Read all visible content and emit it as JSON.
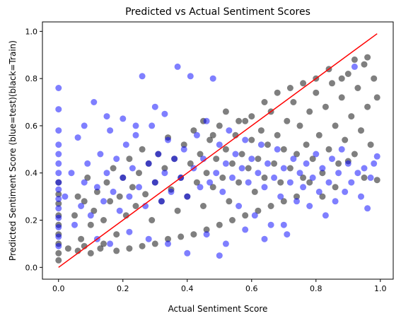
{
  "chart_data": {
    "type": "scatter",
    "title": "Predicted vs Actual Sentiment Scores",
    "xlabel": "Actual Sentiment Score",
    "ylabel": "Predicted Sentiment Score (blue=test)(black=Train)",
    "xlim": [
      -0.05,
      1.04
    ],
    "ylim": [
      -0.05,
      1.04
    ],
    "xticks": [
      0.0,
      0.2,
      0.4,
      0.6,
      0.8,
      1.0
    ],
    "yticks": [
      0.0,
      0.2,
      0.4,
      0.6,
      0.8,
      1.0
    ],
    "tick_labels": [
      "0.0",
      "0.2",
      "0.4",
      "0.6",
      "0.8",
      "1.0"
    ],
    "grid": false,
    "legend": "none",
    "series": [
      {
        "color": "#000000",
        "alpha": 0.5,
        "values": [
          [
            0.0,
            0.03
          ],
          [
            0.0,
            0.06
          ],
          [
            0.0,
            0.1
          ],
          [
            0.0,
            0.14
          ],
          [
            0.0,
            0.18
          ],
          [
            0.0,
            0.22
          ],
          [
            0.0,
            0.27
          ],
          [
            0.0,
            0.31
          ],
          [
            0.0,
            0.36
          ],
          [
            0.03,
            0.08
          ],
          [
            0.05,
            0.22
          ],
          [
            0.06,
            0.3
          ],
          [
            0.07,
            0.12
          ],
          [
            0.08,
            0.28
          ],
          [
            0.09,
            0.38
          ],
          [
            0.1,
            0.18
          ],
          [
            0.11,
            0.24
          ],
          [
            0.12,
            0.32
          ],
          [
            0.13,
            0.08
          ],
          [
            0.14,
            0.2
          ],
          [
            0.15,
            0.36
          ],
          [
            0.16,
            0.28
          ],
          [
            0.17,
            0.42
          ],
          [
            0.18,
            0.14
          ],
          [
            0.19,
            0.3
          ],
          [
            0.2,
            0.38
          ],
          [
            0.21,
            0.22
          ],
          [
            0.22,
            0.46
          ],
          [
            0.23,
            0.34
          ],
          [
            0.24,
            0.26
          ],
          [
            0.25,
            0.4
          ],
          [
            0.26,
            0.5
          ],
          [
            0.27,
            0.31
          ],
          [
            0.28,
            0.44
          ],
          [
            0.29,
            0.2
          ],
          [
            0.3,
            0.36
          ],
          [
            0.31,
            0.48
          ],
          [
            0.32,
            0.28
          ],
          [
            0.33,
            0.42
          ],
          [
            0.34,
            0.55
          ],
          [
            0.35,
            0.33
          ],
          [
            0.36,
            0.46
          ],
          [
            0.37,
            0.24
          ],
          [
            0.38,
            0.38
          ],
          [
            0.39,
            0.52
          ],
          [
            0.4,
            0.3
          ],
          [
            0.41,
            0.44
          ],
          [
            0.42,
            0.58
          ],
          [
            0.43,
            0.36
          ],
          [
            0.44,
            0.48
          ],
          [
            0.45,
            0.26
          ],
          [
            0.46,
            0.4
          ],
          [
            0.47,
            0.54
          ],
          [
            0.48,
            0.34
          ],
          [
            0.49,
            0.46
          ],
          [
            0.5,
            0.6
          ],
          [
            0.51,
            0.38
          ],
          [
            0.52,
            0.5
          ],
          [
            0.53,
            0.28
          ],
          [
            0.54,
            0.44
          ],
          [
            0.55,
            0.56
          ],
          [
            0.56,
            0.36
          ],
          [
            0.57,
            0.48
          ],
          [
            0.58,
            0.62
          ],
          [
            0.59,
            0.42
          ],
          [
            0.6,
            0.54
          ],
          [
            0.61,
            0.32
          ],
          [
            0.62,
            0.46
          ],
          [
            0.63,
            0.58
          ],
          [
            0.64,
            0.38
          ],
          [
            0.65,
            0.52
          ],
          [
            0.66,
            0.66
          ],
          [
            0.67,
            0.44
          ],
          [
            0.68,
            0.56
          ],
          [
            0.69,
            0.36
          ],
          [
            0.7,
            0.5
          ],
          [
            0.71,
            0.62
          ],
          [
            0.72,
            0.42
          ],
          [
            0.73,
            0.7
          ],
          [
            0.74,
            0.48
          ],
          [
            0.75,
            0.6
          ],
          [
            0.76,
            0.38
          ],
          [
            0.77,
            0.52
          ],
          [
            0.78,
            0.66
          ],
          [
            0.79,
            0.46
          ],
          [
            0.8,
            0.74
          ],
          [
            0.81,
            0.56
          ],
          [
            0.82,
            0.4
          ],
          [
            0.83,
            0.68
          ],
          [
            0.84,
            0.5
          ],
          [
            0.85,
            0.78
          ],
          [
            0.86,
            0.6
          ],
          [
            0.87,
            0.44
          ],
          [
            0.88,
            0.72
          ],
          [
            0.89,
            0.54
          ],
          [
            0.9,
            0.82
          ],
          [
            0.91,
            0.64
          ],
          [
            0.92,
            0.48
          ],
          [
            0.93,
            0.76
          ],
          [
            0.94,
            0.58
          ],
          [
            0.95,
            0.86
          ],
          [
            0.96,
            0.68
          ],
          [
            0.97,
            0.52
          ],
          [
            0.98,
            0.8
          ],
          [
            0.99,
            0.72
          ],
          [
            0.99,
            0.37
          ],
          [
            0.95,
            0.38
          ],
          [
            0.9,
            0.45
          ],
          [
            0.86,
            0.34
          ],
          [
            0.82,
            0.3
          ],
          [
            0.78,
            0.36
          ],
          [
            0.74,
            0.3
          ],
          [
            0.7,
            0.28
          ],
          [
            0.66,
            0.26
          ],
          [
            0.62,
            0.24
          ],
          [
            0.58,
            0.22
          ],
          [
            0.54,
            0.2
          ],
          [
            0.5,
            0.18
          ],
          [
            0.46,
            0.16
          ],
          [
            0.42,
            0.14
          ],
          [
            0.38,
            0.13
          ],
          [
            0.34,
            0.12
          ],
          [
            0.3,
            0.1
          ],
          [
            0.26,
            0.09
          ],
          [
            0.22,
            0.08
          ],
          [
            0.18,
            0.07
          ],
          [
            0.14,
            0.1
          ],
          [
            0.1,
            0.06
          ],
          [
            0.08,
            0.09
          ],
          [
            0.06,
            0.07
          ],
          [
            0.45,
            0.62
          ],
          [
            0.52,
            0.66
          ],
          [
            0.6,
            0.64
          ],
          [
            0.68,
            0.74
          ],
          [
            0.76,
            0.78
          ],
          [
            0.84,
            0.84
          ],
          [
            0.92,
            0.88
          ],
          [
            0.96,
            0.89
          ],
          [
            0.88,
            0.8
          ],
          [
            0.8,
            0.8
          ],
          [
            0.72,
            0.76
          ],
          [
            0.64,
            0.7
          ],
          [
            0.56,
            0.62
          ],
          [
            0.48,
            0.56
          ]
        ]
      },
      {
        "color": "#0000ff",
        "alpha": 0.5,
        "values": [
          [
            0.0,
            0.76
          ],
          [
            0.0,
            0.67
          ],
          [
            0.0,
            0.58
          ],
          [
            0.0,
            0.52
          ],
          [
            0.0,
            0.48
          ],
          [
            0.0,
            0.44
          ],
          [
            0.0,
            0.4
          ],
          [
            0.0,
            0.36
          ],
          [
            0.0,
            0.33
          ],
          [
            0.0,
            0.29
          ],
          [
            0.0,
            0.25
          ],
          [
            0.0,
            0.21
          ],
          [
            0.0,
            0.17
          ],
          [
            0.0,
            0.13
          ],
          [
            0.0,
            0.09
          ],
          [
            0.02,
            0.3
          ],
          [
            0.04,
            0.4
          ],
          [
            0.05,
            0.18
          ],
          [
            0.06,
            0.55
          ],
          [
            0.07,
            0.26
          ],
          [
            0.08,
            0.36
          ],
          [
            0.09,
            0.44
          ],
          [
            0.1,
            0.22
          ],
          [
            0.11,
            0.7
          ],
          [
            0.12,
            0.34
          ],
          [
            0.13,
            0.48
          ],
          [
            0.14,
            0.28
          ],
          [
            0.15,
            0.4
          ],
          [
            0.16,
            0.58
          ],
          [
            0.17,
            0.32
          ],
          [
            0.18,
            0.46
          ],
          [
            0.19,
            0.24
          ],
          [
            0.2,
            0.38
          ],
          [
            0.21,
            0.52
          ],
          [
            0.22,
            0.3
          ],
          [
            0.23,
            0.42
          ],
          [
            0.24,
            0.56
          ],
          [
            0.25,
            0.34
          ],
          [
            0.26,
            0.81
          ],
          [
            0.27,
            0.26
          ],
          [
            0.28,
            0.44
          ],
          [
            0.29,
            0.6
          ],
          [
            0.3,
            0.36
          ],
          [
            0.31,
            0.48
          ],
          [
            0.32,
            0.28
          ],
          [
            0.33,
            0.4
          ],
          [
            0.34,
            0.54
          ],
          [
            0.35,
            0.32
          ],
          [
            0.36,
            0.46
          ],
          [
            0.37,
            0.85
          ],
          [
            0.38,
            0.38
          ],
          [
            0.39,
            0.5
          ],
          [
            0.4,
            0.3
          ],
          [
            0.41,
            0.81
          ],
          [
            0.42,
            0.42
          ],
          [
            0.43,
            0.56
          ],
          [
            0.44,
            0.34
          ],
          [
            0.45,
            0.46
          ],
          [
            0.46,
            0.62
          ],
          [
            0.47,
            0.36
          ],
          [
            0.48,
            0.8
          ],
          [
            0.49,
            0.4
          ],
          [
            0.5,
            0.52
          ],
          [
            0.51,
            0.32
          ],
          [
            0.52,
            0.44
          ],
          [
            0.53,
            0.58
          ],
          [
            0.54,
            0.38
          ],
          [
            0.55,
            0.48
          ],
          [
            0.56,
            0.26
          ],
          [
            0.57,
            0.42
          ],
          [
            0.58,
            0.54
          ],
          [
            0.59,
            0.36
          ],
          [
            0.6,
            0.46
          ],
          [
            0.61,
            0.22
          ],
          [
            0.62,
            0.4
          ],
          [
            0.63,
            0.52
          ],
          [
            0.64,
            0.34
          ],
          [
            0.65,
            0.44
          ],
          [
            0.66,
            0.18
          ],
          [
            0.67,
            0.38
          ],
          [
            0.68,
            0.5
          ],
          [
            0.69,
            0.3
          ],
          [
            0.7,
            0.42
          ],
          [
            0.71,
            0.14
          ],
          [
            0.72,
            0.36
          ],
          [
            0.73,
            0.46
          ],
          [
            0.74,
            0.28
          ],
          [
            0.75,
            0.4
          ],
          [
            0.76,
            0.34
          ],
          [
            0.77,
            0.44
          ],
          [
            0.78,
            0.26
          ],
          [
            0.79,
            0.38
          ],
          [
            0.8,
            0.48
          ],
          [
            0.81,
            0.32
          ],
          [
            0.82,
            0.42
          ],
          [
            0.83,
            0.22
          ],
          [
            0.84,
            0.36
          ],
          [
            0.85,
            0.46
          ],
          [
            0.86,
            0.28
          ],
          [
            0.87,
            0.4
          ],
          [
            0.88,
            0.5
          ],
          [
            0.89,
            0.32
          ],
          [
            0.9,
            0.44
          ],
          [
            0.91,
            0.36
          ],
          [
            0.92,
            0.85
          ],
          [
            0.93,
            0.4
          ],
          [
            0.94,
            0.3
          ],
          [
            0.95,
            0.42
          ],
          [
            0.96,
            0.25
          ],
          [
            0.97,
            0.38
          ],
          [
            0.98,
            0.44
          ],
          [
            0.99,
            0.47
          ],
          [
            0.12,
            0.12
          ],
          [
            0.16,
            0.1
          ],
          [
            0.22,
            0.15
          ],
          [
            0.28,
            0.12
          ],
          [
            0.34,
            0.1
          ],
          [
            0.4,
            0.06
          ],
          [
            0.46,
            0.14
          ],
          [
            0.52,
            0.1
          ],
          [
            0.58,
            0.16
          ],
          [
            0.64,
            0.12
          ],
          [
            0.7,
            0.18
          ],
          [
            0.5,
            0.05
          ],
          [
            0.3,
            0.68
          ],
          [
            0.33,
            0.65
          ],
          [
            0.15,
            0.64
          ],
          [
            0.2,
            0.63
          ],
          [
            0.08,
            0.6
          ],
          [
            0.24,
            0.6
          ]
        ]
      }
    ],
    "reference_line": {
      "color": "#ff0000",
      "x": [
        0.0,
        0.99
      ],
      "y": [
        0.0,
        0.99
      ]
    }
  }
}
